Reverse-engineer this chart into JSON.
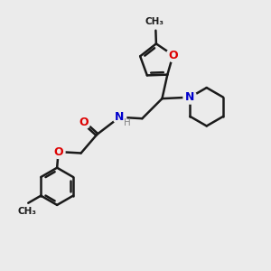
{
  "background_color": "#ebebeb",
  "bond_color": "#1a1a1a",
  "bond_width": 1.8,
  "atom_colors": {
    "O": "#dd0000",
    "N": "#0000cc",
    "H": "#888888",
    "C": "#1a1a1a"
  },
  "font_size": 9
}
